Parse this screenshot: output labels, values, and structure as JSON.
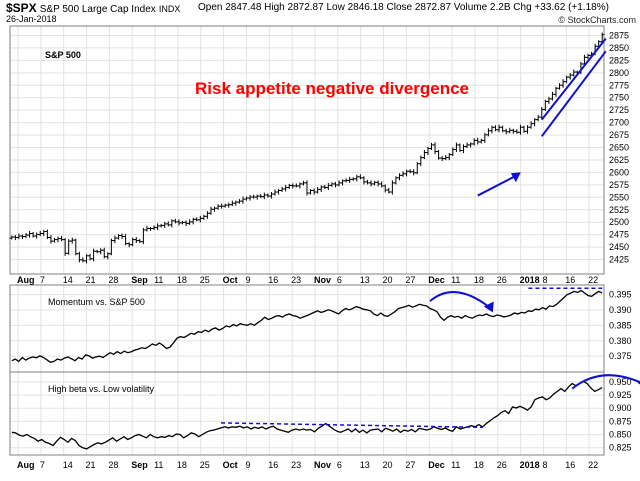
{
  "header": {
    "symbol": "$SPX",
    "name": "S&P 500 Large Cap Index",
    "exchange": "INDX",
    "date": "26-Jan-2018",
    "open": "Open 2847.48",
    "high": "High 2872.87",
    "low": "Low 2846.18",
    "close": "Close 2872.87",
    "volume": "Volume 2.2B",
    "chg": "Chg +33.62 (+1.18%)",
    "credit": "© StockCharts.com"
  },
  "chart_data": [
    {
      "type": "ohlc",
      "panel_label": "S&P 500",
      "annotation": "Risk appetite negative divergence",
      "annotation_color": "#ff0000",
      "ylim": [
        2400,
        2890
      ],
      "y_ticks": [
        2425,
        2450,
        2475,
        2500,
        2525,
        2550,
        2575,
        2600,
        2625,
        2650,
        2675,
        2700,
        2725,
        2750,
        2775,
        2800,
        2825,
        2850,
        2875
      ],
      "close": [
        2473,
        2472,
        2475,
        2474,
        2477,
        2480,
        2475,
        2478,
        2480,
        2484,
        2472,
        2465,
        2468,
        2470,
        2468,
        2441,
        2465,
        2467,
        2440,
        2428,
        2426,
        2436,
        2430,
        2445,
        2444,
        2447,
        2434,
        2440,
        2466,
        2471,
        2476,
        2474,
        2460,
        2458,
        2468,
        2466,
        2464,
        2487,
        2490,
        2490,
        2492,
        2495,
        2496,
        2499,
        2497,
        2505,
        2503,
        2501,
        2502,
        2500,
        2503,
        2508,
        2507,
        2510,
        2514,
        2520,
        2528,
        2530,
        2534,
        2534,
        2536,
        2537,
        2540,
        2542,
        2544,
        2548,
        2550,
        2552,
        2552,
        2554,
        2553,
        2556,
        2554,
        2558,
        2562,
        2565,
        2568,
        2571,
        2575,
        2574,
        2574,
        2578,
        2580,
        2560,
        2565,
        2562,
        2567,
        2572,
        2571,
        2575,
        2578,
        2576,
        2580,
        2584,
        2585,
        2587,
        2588,
        2592,
        2590,
        2582,
        2580,
        2578,
        2581,
        2578,
        2574,
        2566,
        2562,
        2580,
        2590,
        2595,
        2598,
        2603,
        2602,
        2600,
        2618,
        2630,
        2640,
        2648,
        2655,
        2642,
        2629,
        2628,
        2630,
        2636,
        2646,
        2655,
        2644,
        2652,
        2655,
        2657,
        2664,
        2661,
        2664,
        2675,
        2683,
        2690,
        2685,
        2690,
        2683,
        2681,
        2684,
        2682,
        2680,
        2690,
        2682,
        2690,
        2697,
        2705,
        2710,
        2725,
        2741,
        2746,
        2755,
        2767,
        2773,
        2780,
        2789,
        2793,
        2799,
        2798,
        2815,
        2828,
        2832,
        2835,
        2850,
        2859,
        2873
      ],
      "x_month_labels": [
        "Aug",
        "7",
        "14",
        "21",
        "28",
        "Sep",
        "11",
        "18",
        "25",
        "Oct",
        "9",
        "16",
        "23",
        "Nov",
        "6",
        "13",
        "20",
        "27",
        "Dec",
        "11",
        "18",
        "26",
        "2018",
        "8",
        "16",
        "22"
      ],
      "channel_lines": [
        {
          "from": [
            149,
            2705
          ],
          "to": [
            167,
            2865
          ]
        },
        {
          "from": [
            149,
            2672
          ],
          "to": [
            167,
            2840
          ]
        }
      ],
      "arrow": {
        "from": [
          131,
          2555
        ],
        "to": [
          142,
          2595
        ]
      },
      "trend_color": "#1010d0"
    },
    {
      "type": "line",
      "panel_label": "Momentum vs. S&P 500",
      "ylim": [
        0.3705,
        0.3975
      ],
      "y_ticks": [
        0.375,
        0.38,
        0.385,
        0.39,
        0.395
      ],
      "values": [
        0.374,
        0.3745,
        0.3738,
        0.375,
        0.3742,
        0.3748,
        0.3752,
        0.3749,
        0.3755,
        0.375,
        0.3743,
        0.3735,
        0.3738,
        0.3745,
        0.3742,
        0.3748,
        0.3752,
        0.3746,
        0.374,
        0.375,
        0.3745,
        0.3758,
        0.3755,
        0.3748,
        0.3752,
        0.3754,
        0.375,
        0.3758,
        0.3765,
        0.376,
        0.3768,
        0.3762,
        0.377,
        0.3765,
        0.3768,
        0.3773,
        0.3776,
        0.378,
        0.3778,
        0.3784,
        0.3792,
        0.3788,
        0.3795,
        0.3788,
        0.3778,
        0.3782,
        0.3795,
        0.381,
        0.3815,
        0.3812,
        0.3818,
        0.3825,
        0.3822,
        0.383,
        0.3828,
        0.3835,
        0.383,
        0.3838,
        0.3842,
        0.3835,
        0.384,
        0.3848,
        0.3845,
        0.3852,
        0.3848,
        0.3855,
        0.3852,
        0.385,
        0.3855,
        0.385,
        0.3858,
        0.3865,
        0.3875,
        0.3868,
        0.3872,
        0.3878,
        0.388,
        0.3875,
        0.3882,
        0.3885,
        0.388,
        0.3878,
        0.3872,
        0.3876,
        0.388,
        0.3885,
        0.389,
        0.3895,
        0.389,
        0.3893,
        0.3898,
        0.3895,
        0.389,
        0.3885,
        0.3895,
        0.3902,
        0.3898,
        0.3902,
        0.3908,
        0.3905,
        0.39,
        0.3898,
        0.3895,
        0.3885,
        0.388,
        0.3888,
        0.388,
        0.3878,
        0.3885,
        0.3892,
        0.3902,
        0.3905,
        0.3908,
        0.3912,
        0.3906,
        0.391,
        0.3915,
        0.3912,
        0.391,
        0.3902,
        0.3898,
        0.3892,
        0.3875,
        0.3865,
        0.3875,
        0.388,
        0.3875,
        0.3878,
        0.3872,
        0.388,
        0.3875,
        0.3872,
        0.3878,
        0.3882,
        0.388,
        0.3885,
        0.388,
        0.3877,
        0.3882,
        0.388,
        0.3876,
        0.3878,
        0.3882,
        0.3888,
        0.3885,
        0.389,
        0.3888,
        0.3895,
        0.3893,
        0.39,
        0.3898,
        0.3905,
        0.39,
        0.391,
        0.3908,
        0.3915,
        0.3925,
        0.3935,
        0.3945,
        0.395,
        0.3955,
        0.3952,
        0.3958,
        0.395,
        0.3942,
        0.394,
        0.3948,
        0.3955,
        0.395
      ],
      "arc": {
        "from": [
          119,
          0.3925
        ],
        "peak": [
          126,
          0.3965
        ],
        "to": [
          136,
          0.3905
        ]
      },
      "dashed": {
        "from": [
          147,
          0.3965
        ],
        "to": [
          168,
          0.3965
        ]
      },
      "arrow_color": "#1010d0"
    },
    {
      "type": "line",
      "panel_label": "High beta vs. Low volatility",
      "ylim": [
        0.815,
        0.965
      ],
      "y_ticks": [
        0.825,
        0.85,
        0.875,
        0.9,
        0.925,
        0.95
      ],
      "values": [
        0.856,
        0.855,
        0.851,
        0.849,
        0.852,
        0.848,
        0.845,
        0.84,
        0.843,
        0.838,
        0.836,
        0.832,
        0.84,
        0.847,
        0.843,
        0.838,
        0.845,
        0.841,
        0.832,
        0.828,
        0.826,
        0.83,
        0.834,
        0.837,
        0.835,
        0.838,
        0.842,
        0.846,
        0.84,
        0.844,
        0.848,
        0.843,
        0.846,
        0.85,
        0.852,
        0.849,
        0.846,
        0.852,
        0.848,
        0.846,
        0.848,
        0.847,
        0.85,
        0.848,
        0.853,
        0.852,
        0.846,
        0.85,
        0.855,
        0.853,
        0.848,
        0.852,
        0.856,
        0.859,
        0.86,
        0.862,
        0.864,
        0.866,
        0.864,
        0.866,
        0.865,
        0.867,
        0.864,
        0.866,
        0.862,
        0.865,
        0.863,
        0.866,
        0.862,
        0.865,
        0.867,
        0.862,
        0.86,
        0.858,
        0.856,
        0.86,
        0.862,
        0.86,
        0.862,
        0.86,
        0.861,
        0.857,
        0.863,
        0.867,
        0.872,
        0.867,
        0.862,
        0.858,
        0.856,
        0.859,
        0.862,
        0.857,
        0.862,
        0.856,
        0.86,
        0.855,
        0.86,
        0.861,
        0.862,
        0.857,
        0.863,
        0.861,
        0.858,
        0.862,
        0.856,
        0.86,
        0.858,
        0.861,
        0.857,
        0.863,
        0.862,
        0.86,
        0.862,
        0.866,
        0.863,
        0.861,
        0.864,
        0.86,
        0.858,
        0.866,
        0.862,
        0.864,
        0.866,
        0.868,
        0.866,
        0.87,
        0.866,
        0.872,
        0.877,
        0.882,
        0.886,
        0.892,
        0.895,
        0.89,
        0.902,
        0.9,
        0.903,
        0.9,
        0.896,
        0.902,
        0.915,
        0.918,
        0.92,
        0.915,
        0.918,
        0.925,
        0.93,
        0.935,
        0.93,
        0.938,
        0.944,
        0.94,
        0.944,
        0.948,
        0.944,
        0.936,
        0.93,
        0.933,
        0.937
      ],
      "arc": {
        "from": [
          150,
          0.935
        ],
        "peak": [
          158,
          0.964
        ],
        "to": [
          169,
          0.944
        ]
      },
      "dashed": {
        "from": [
          56,
          0.873
        ],
        "to": [
          126,
          0.865
        ]
      },
      "arrow_color": "#1010d0"
    }
  ]
}
